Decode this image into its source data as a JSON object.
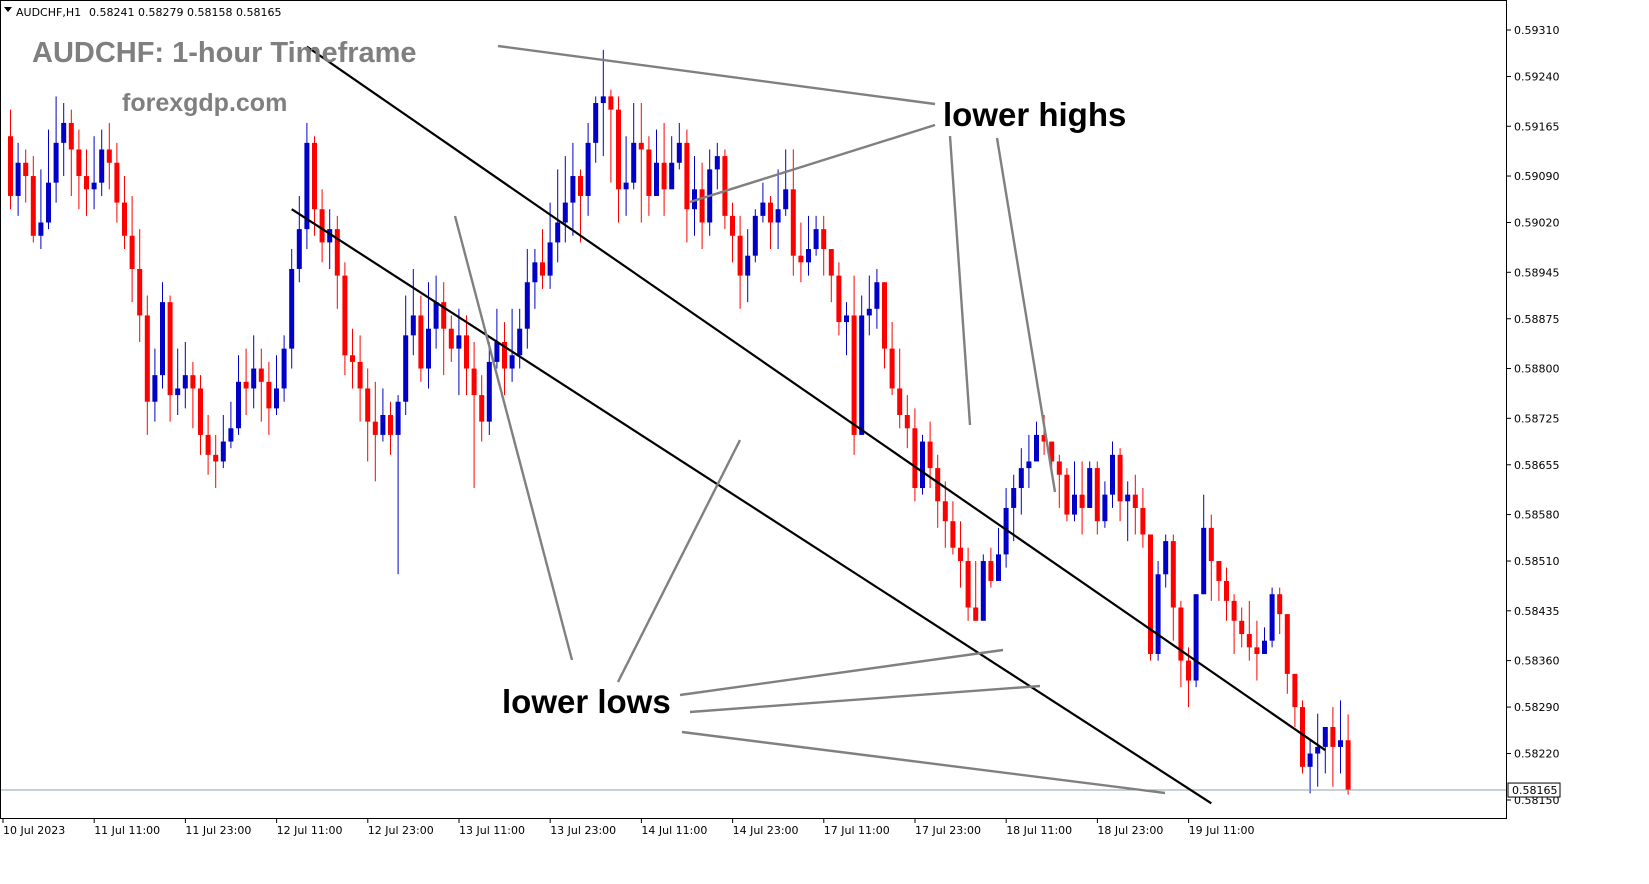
{
  "header": {
    "symbol": "AUDCHF,H1",
    "ohlc": "0.58241 0.58279 0.58158 0.58165"
  },
  "overlay": {
    "title": "AUDCHF: 1-hour Timeframe",
    "site": "forexgdp.com",
    "label_highs": "lower highs",
    "label_lows": "lower lows"
  },
  "colors": {
    "bull": "#0000c8",
    "bear": "#ff0000",
    "channel": "#000000",
    "pointer": "#808080",
    "current_line": "#8fa0a8"
  },
  "chart_data": {
    "type": "candlestick",
    "current_price": "0.58165",
    "ylim": [
      0.5813,
      0.5933
    ],
    "y_ticks": [
      "0.59310",
      "0.59240",
      "0.59165",
      "0.59090",
      "0.59020",
      "0.58945",
      "0.58875",
      "0.58800",
      "0.58725",
      "0.58655",
      "0.58580",
      "0.58510",
      "0.58435",
      "0.58360",
      "0.58290",
      "0.58220",
      "0.58150"
    ],
    "x_ticks": [
      "10 Jul 2023",
      "11 Jul 11:00",
      "11 Jul 23:00",
      "12 Jul 11:00",
      "12 Jul 23:00",
      "13 Jul 11:00",
      "13 Jul 23:00",
      "14 Jul 11:00",
      "14 Jul 23:00",
      "17 Jul 11:00",
      "17 Jul 23:00",
      "18 Jul 11:00",
      "18 Jul 23:00",
      "19 Jul 11:00"
    ],
    "channel": {
      "upper": [
        [
          39,
          0.59285
        ],
        [
          173,
          0.58225
        ]
      ],
      "lower": [
        [
          37,
          0.5904
        ],
        [
          158,
          0.58145
        ]
      ]
    },
    "candles": [
      [
        0.5915,
        0.5906,
        0.5919,
        0.5904
      ],
      [
        0.5906,
        0.5911,
        0.5914,
        0.5903
      ],
      [
        0.5911,
        0.5909,
        0.5913,
        0.5905
      ],
      [
        0.5909,
        0.59,
        0.5912,
        0.5899
      ],
      [
        0.59,
        0.5902,
        0.591,
        0.5898
      ],
      [
        0.5902,
        0.5908,
        0.5916,
        0.5901
      ],
      [
        0.5908,
        0.5914,
        0.5921,
        0.5905
      ],
      [
        0.5914,
        0.5917,
        0.592,
        0.5909
      ],
      [
        0.5917,
        0.5913,
        0.5919,
        0.5906
      ],
      [
        0.5913,
        0.5909,
        0.5916,
        0.5904
      ],
      [
        0.5909,
        0.5907,
        0.5913,
        0.5903
      ],
      [
        0.5907,
        0.5908,
        0.5915,
        0.5904
      ],
      [
        0.5908,
        0.5913,
        0.5916,
        0.5906
      ],
      [
        0.5913,
        0.5911,
        0.5917,
        0.5907
      ],
      [
        0.5911,
        0.5905,
        0.5914,
        0.5902
      ],
      [
        0.5905,
        0.59,
        0.5909,
        0.5898
      ],
      [
        0.59,
        0.5895,
        0.5906,
        0.589
      ],
      [
        0.5895,
        0.5888,
        0.5901,
        0.5884
      ],
      [
        0.5888,
        0.5875,
        0.5891,
        0.587
      ],
      [
        0.5875,
        0.5879,
        0.5883,
        0.5872
      ],
      [
        0.5879,
        0.589,
        0.5893,
        0.5877
      ],
      [
        0.589,
        0.5876,
        0.5891,
        0.5872
      ],
      [
        0.5876,
        0.5877,
        0.5883,
        0.5873
      ],
      [
        0.5877,
        0.5879,
        0.5884,
        0.5874
      ],
      [
        0.5879,
        0.5877,
        0.5881,
        0.5871
      ],
      [
        0.5877,
        0.587,
        0.5879,
        0.5867
      ],
      [
        0.587,
        0.5867,
        0.5873,
        0.5864
      ],
      [
        0.5867,
        0.5866,
        0.587,
        0.5862
      ],
      [
        0.5866,
        0.5869,
        0.5873,
        0.5865
      ],
      [
        0.5869,
        0.5871,
        0.5875,
        0.5868
      ],
      [
        0.5871,
        0.5878,
        0.5882,
        0.587
      ],
      [
        0.5878,
        0.5877,
        0.5883,
        0.5873
      ],
      [
        0.5877,
        0.588,
        0.5885,
        0.5874
      ],
      [
        0.588,
        0.5878,
        0.5883,
        0.5872
      ],
      [
        0.5878,
        0.5874,
        0.5881,
        0.587
      ],
      [
        0.5874,
        0.5877,
        0.5882,
        0.5873
      ],
      [
        0.5877,
        0.5883,
        0.5885,
        0.5875
      ],
      [
        0.5883,
        0.5895,
        0.5898,
        0.588
      ],
      [
        0.5895,
        0.5901,
        0.5906,
        0.5893
      ],
      [
        0.5901,
        0.5914,
        0.5917,
        0.5898
      ],
      [
        0.5914,
        0.5904,
        0.5915,
        0.59
      ],
      [
        0.5904,
        0.5899,
        0.5907,
        0.5896
      ],
      [
        0.5899,
        0.5901,
        0.5904,
        0.5895
      ],
      [
        0.5901,
        0.5894,
        0.5903,
        0.5889
      ],
      [
        0.5894,
        0.5882,
        0.5896,
        0.5879
      ],
      [
        0.5882,
        0.5881,
        0.5886,
        0.5877
      ],
      [
        0.5881,
        0.5877,
        0.5885,
        0.5872
      ],
      [
        0.5877,
        0.5872,
        0.588,
        0.5866
      ],
      [
        0.5872,
        0.587,
        0.5878,
        0.5863
      ],
      [
        0.587,
        0.5873,
        0.5877,
        0.5869
      ],
      [
        0.5873,
        0.587,
        0.5875,
        0.5867
      ],
      [
        0.587,
        0.5875,
        0.5876,
        0.5849
      ],
      [
        0.5875,
        0.5885,
        0.5891,
        0.5873
      ],
      [
        0.5885,
        0.5888,
        0.5895,
        0.5882
      ],
      [
        0.5888,
        0.588,
        0.5891,
        0.5878
      ],
      [
        0.588,
        0.5886,
        0.5893,
        0.5877
      ],
      [
        0.5886,
        0.589,
        0.5894,
        0.5883
      ],
      [
        0.589,
        0.5886,
        0.5893,
        0.5879
      ],
      [
        0.5886,
        0.5883,
        0.5888,
        0.5881
      ],
      [
        0.5883,
        0.5885,
        0.5889,
        0.5876
      ],
      [
        0.5885,
        0.588,
        0.5888,
        0.5876
      ],
      [
        0.588,
        0.5876,
        0.5884,
        0.5862
      ],
      [
        0.5876,
        0.5872,
        0.5879,
        0.5869
      ],
      [
        0.5872,
        0.5881,
        0.5884,
        0.587
      ],
      [
        0.5881,
        0.5884,
        0.5889,
        0.588
      ],
      [
        0.5884,
        0.588,
        0.5887,
        0.5876
      ],
      [
        0.588,
        0.5882,
        0.5889,
        0.5878
      ],
      [
        0.5882,
        0.5886,
        0.5889,
        0.588
      ],
      [
        0.5886,
        0.5893,
        0.5898,
        0.5883
      ],
      [
        0.5893,
        0.5896,
        0.5898,
        0.5889
      ],
      [
        0.5896,
        0.5894,
        0.5901,
        0.5892
      ],
      [
        0.5894,
        0.5899,
        0.5905,
        0.5892
      ],
      [
        0.5899,
        0.5902,
        0.591,
        0.5896
      ],
      [
        0.5902,
        0.5905,
        0.5912,
        0.5899
      ],
      [
        0.5905,
        0.5909,
        0.5914,
        0.59
      ],
      [
        0.5909,
        0.5906,
        0.591,
        0.5899
      ],
      [
        0.5906,
        0.5914,
        0.5917,
        0.5903
      ],
      [
        0.5914,
        0.592,
        0.5921,
        0.5911
      ],
      [
        0.592,
        0.5921,
        0.5928,
        0.5912
      ],
      [
        0.5921,
        0.5919,
        0.5922,
        0.5908
      ],
      [
        0.5919,
        0.5907,
        0.5921,
        0.5902
      ],
      [
        0.5907,
        0.5908,
        0.5915,
        0.5903
      ],
      [
        0.5908,
        0.5914,
        0.592,
        0.5907
      ],
      [
        0.5914,
        0.5913,
        0.592,
        0.5902
      ],
      [
        0.5913,
        0.5906,
        0.5915,
        0.5903
      ],
      [
        0.5906,
        0.5911,
        0.5916,
        0.5907
      ],
      [
        0.5911,
        0.5907,
        0.5917,
        0.5903
      ],
      [
        0.5907,
        0.5911,
        0.5915,
        0.5909
      ],
      [
        0.5911,
        0.5914,
        0.5917,
        0.591
      ],
      [
        0.5914,
        0.5904,
        0.5916,
        0.5899
      ],
      [
        0.5904,
        0.5907,
        0.5912,
        0.59
      ],
      [
        0.5907,
        0.5902,
        0.5911,
        0.5898
      ],
      [
        0.5902,
        0.591,
        0.5913,
        0.59
      ],
      [
        0.591,
        0.5912,
        0.5914,
        0.5907
      ],
      [
        0.5912,
        0.5903,
        0.5913,
        0.5901
      ],
      [
        0.5903,
        0.59,
        0.5905,
        0.5896
      ],
      [
        0.59,
        0.5894,
        0.5903,
        0.5889
      ],
      [
        0.5894,
        0.5897,
        0.5901,
        0.589
      ],
      [
        0.5897,
        0.5903,
        0.5904,
        0.5896
      ],
      [
        0.5903,
        0.5905,
        0.5908,
        0.5902
      ],
      [
        0.5905,
        0.5902,
        0.5906,
        0.5898
      ],
      [
        0.5902,
        0.5904,
        0.591,
        0.5898
      ],
      [
        0.5904,
        0.5907,
        0.5913,
        0.5903
      ],
      [
        0.5907,
        0.5897,
        0.5913,
        0.5894
      ],
      [
        0.5897,
        0.5896,
        0.5902,
        0.5893
      ],
      [
        0.5896,
        0.5898,
        0.5903,
        0.5894
      ],
      [
        0.5898,
        0.5901,
        0.5903,
        0.5897
      ],
      [
        0.5901,
        0.5898,
        0.5903,
        0.5894
      ],
      [
        0.5898,
        0.5894,
        0.5898,
        0.589
      ],
      [
        0.5894,
        0.5887,
        0.5896,
        0.5885
      ],
      [
        0.5887,
        0.5888,
        0.589,
        0.5882
      ],
      [
        0.5888,
        0.587,
        0.5894,
        0.5867
      ],
      [
        0.587,
        0.5888,
        0.5891,
        0.587
      ],
      [
        0.5888,
        0.5889,
        0.5894,
        0.5885
      ],
      [
        0.5889,
        0.5893,
        0.5895,
        0.5886
      ],
      [
        0.5893,
        0.5883,
        0.5893,
        0.588
      ],
      [
        0.5883,
        0.5877,
        0.5887,
        0.5876
      ],
      [
        0.5877,
        0.5873,
        0.5883,
        0.5871
      ],
      [
        0.5873,
        0.5871,
        0.5876,
        0.5868
      ],
      [
        0.5871,
        0.5862,
        0.5874,
        0.586
      ],
      [
        0.5862,
        0.5869,
        0.587,
        0.5861
      ],
      [
        0.5869,
        0.5865,
        0.5872,
        0.5862
      ],
      [
        0.5865,
        0.586,
        0.5867,
        0.5856
      ],
      [
        0.586,
        0.5857,
        0.5863,
        0.5853
      ],
      [
        0.5857,
        0.5853,
        0.586,
        0.5852
      ],
      [
        0.5853,
        0.5851,
        0.5857,
        0.5847
      ],
      [
        0.5851,
        0.5844,
        0.5853,
        0.5842
      ],
      [
        0.5844,
        0.5842,
        0.5851,
        0.5842
      ],
      [
        0.5842,
        0.5851,
        0.5852,
        0.5843
      ],
      [
        0.5851,
        0.5848,
        0.5853,
        0.5847
      ],
      [
        0.5848,
        0.5852,
        0.5856,
        0.5848
      ],
      [
        0.5852,
        0.5859,
        0.5862,
        0.585
      ],
      [
        0.5859,
        0.5862,
        0.5864,
        0.5854
      ],
      [
        0.5862,
        0.5865,
        0.5868,
        0.5858
      ],
      [
        0.5865,
        0.5866,
        0.587,
        0.5862
      ],
      [
        0.5866,
        0.587,
        0.5872,
        0.5867
      ],
      [
        0.587,
        0.5869,
        0.5873,
        0.5867
      ],
      [
        0.5869,
        0.5866,
        0.5869,
        0.5865
      ],
      [
        0.5866,
        0.5864,
        0.5867,
        0.5859
      ],
      [
        0.5864,
        0.5858,
        0.5865,
        0.5857
      ],
      [
        0.5858,
        0.5861,
        0.5866,
        0.5857
      ],
      [
        0.5861,
        0.5859,
        0.5866,
        0.5855
      ],
      [
        0.5859,
        0.5865,
        0.5866,
        0.5859
      ],
      [
        0.5865,
        0.5857,
        0.5866,
        0.5855
      ],
      [
        0.5857,
        0.5861,
        0.5863,
        0.5856
      ],
      [
        0.5861,
        0.5867,
        0.5869,
        0.5859
      ],
      [
        0.5867,
        0.586,
        0.5868,
        0.5857
      ],
      [
        0.586,
        0.5861,
        0.5863,
        0.5854
      ],
      [
        0.5861,
        0.5859,
        0.5864,
        0.5855
      ],
      [
        0.5859,
        0.5855,
        0.5862,
        0.5853
      ],
      [
        0.5855,
        0.5837,
        0.5855,
        0.5836
      ],
      [
        0.5837,
        0.5849,
        0.5851,
        0.5836
      ],
      [
        0.5849,
        0.5854,
        0.5855,
        0.5847
      ],
      [
        0.5854,
        0.5844,
        0.5855,
        0.5839
      ],
      [
        0.5844,
        0.5836,
        0.5845,
        0.5832
      ],
      [
        0.5836,
        0.5833,
        0.5838,
        0.5829
      ],
      [
        0.5833,
        0.5846,
        0.5846,
        0.5832
      ],
      [
        0.5846,
        0.5856,
        0.5861,
        0.5846
      ],
      [
        0.5856,
        0.5851,
        0.5858,
        0.5845
      ],
      [
        0.5851,
        0.5848,
        0.585,
        0.5845
      ],
      [
        0.5848,
        0.5845,
        0.585,
        0.5842
      ],
      [
        0.5845,
        0.5842,
        0.5846,
        0.5837
      ],
      [
        0.5842,
        0.584,
        0.5844,
        0.5838
      ],
      [
        0.584,
        0.5838,
        0.5845,
        0.5836
      ],
      [
        0.5838,
        0.5837,
        0.5842,
        0.5833
      ],
      [
        0.5837,
        0.5839,
        0.5841,
        0.5837
      ],
      [
        0.5839,
        0.5846,
        0.5847,
        0.5838
      ],
      [
        0.5846,
        0.5843,
        0.5847,
        0.584
      ],
      [
        0.5843,
        0.5834,
        0.5843,
        0.5831
      ],
      [
        0.5834,
        0.5829,
        0.5833,
        0.5826
      ],
      [
        0.5829,
        0.582,
        0.583,
        0.5819
      ],
      [
        0.582,
        0.5822,
        0.5824,
        0.5816
      ],
      [
        0.5822,
        0.5823,
        0.5828,
        0.5817
      ],
      [
        0.5823,
        0.5826,
        0.5826,
        0.5819
      ],
      [
        0.5826,
        0.5823,
        0.5829,
        0.5817
      ],
      [
        0.5823,
        0.5824,
        0.583,
        0.5819
      ],
      [
        0.5824,
        0.58165,
        0.58279,
        0.58158
      ]
    ]
  }
}
